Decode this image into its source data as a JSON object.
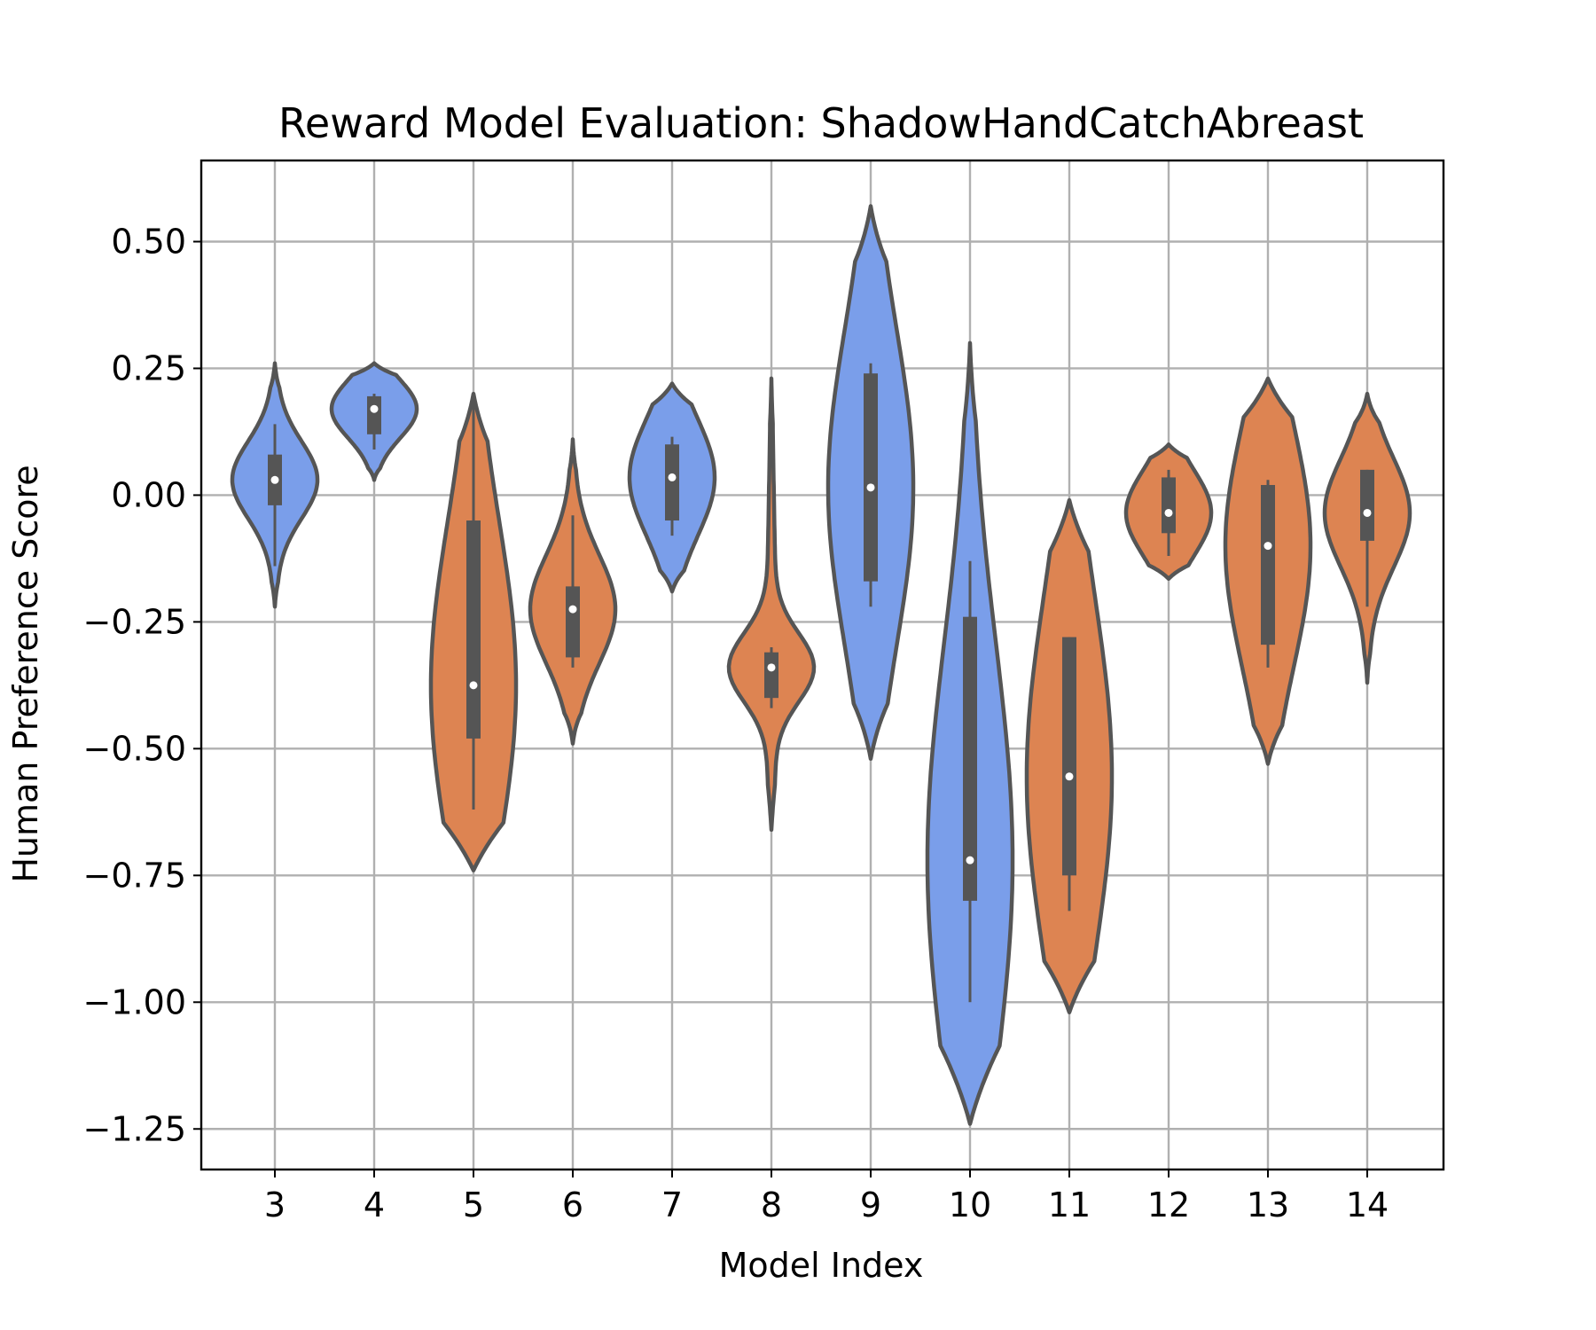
{
  "chart_data": {
    "type": "violin",
    "title": "Reward Model Evaluation: ShadowHandCatchAbreast",
    "xlabel": "Model Index",
    "ylabel": "Human Preference Score",
    "ylim": [
      -1.33,
      0.66
    ],
    "yticks": [
      0.5,
      0.25,
      0.0,
      -0.25,
      -0.5,
      -0.75,
      -1.0,
      -1.25
    ],
    "ytick_labels": [
      "0.50",
      "0.25",
      "0.00",
      "−0.25",
      "−0.50",
      "−0.75",
      "−1.00",
      "−1.25"
    ],
    "categories": [
      "3",
      "4",
      "5",
      "6",
      "7",
      "8",
      "9",
      "10",
      "11",
      "12",
      "13",
      "14"
    ],
    "grid": true,
    "colors": {
      "blue": "#7a9eea",
      "orange": "#dd8452",
      "outline": "#555555",
      "grid": "#b0b0b0"
    },
    "violins": [
      {
        "category": "3",
        "color": "blue",
        "min": -0.22,
        "max": 0.26,
        "q1": -0.02,
        "median": 0.03,
        "q3": 0.08,
        "whisker_low": -0.14,
        "whisker_high": 0.14
      },
      {
        "category": "4",
        "color": "blue",
        "min": 0.03,
        "max": 0.26,
        "q1": 0.12,
        "median": 0.17,
        "q3": 0.195,
        "whisker_low": 0.09,
        "whisker_high": 0.2
      },
      {
        "category": "5",
        "color": "orange",
        "min": -0.74,
        "max": 0.2,
        "q1": -0.48,
        "median": -0.375,
        "q3": -0.05,
        "whisker_low": -0.62,
        "whisker_high": 0.2
      },
      {
        "category": "6",
        "color": "orange",
        "min": -0.49,
        "max": 0.11,
        "q1": -0.32,
        "median": -0.225,
        "q3": -0.18,
        "whisker_low": -0.34,
        "whisker_high": -0.04
      },
      {
        "category": "7",
        "color": "blue",
        "min": -0.19,
        "max": 0.22,
        "q1": -0.05,
        "median": 0.035,
        "q3": 0.1,
        "whisker_low": -0.08,
        "whisker_high": 0.115
      },
      {
        "category": "8",
        "color": "orange",
        "min": -0.66,
        "max": 0.23,
        "q1": -0.4,
        "median": -0.34,
        "q3": -0.31,
        "whisker_low": -0.42,
        "whisker_high": -0.3
      },
      {
        "category": "9",
        "color": "blue",
        "min": -0.52,
        "max": 0.57,
        "q1": -0.17,
        "median": 0.015,
        "q3": 0.24,
        "whisker_low": -0.22,
        "whisker_high": 0.26
      },
      {
        "category": "10",
        "color": "blue",
        "min": -1.24,
        "max": 0.3,
        "q1": -0.8,
        "median": -0.72,
        "q3": -0.24,
        "whisker_low": -1.0,
        "whisker_high": -0.13
      },
      {
        "category": "11",
        "color": "orange",
        "min": -1.02,
        "max": -0.01,
        "q1": -0.75,
        "median": -0.555,
        "q3": -0.28,
        "whisker_low": -0.82,
        "whisker_high": -0.28
      },
      {
        "category": "12",
        "color": "orange",
        "min": -0.165,
        "max": 0.1,
        "q1": -0.075,
        "median": -0.035,
        "q3": 0.035,
        "whisker_low": -0.12,
        "whisker_high": 0.05
      },
      {
        "category": "13",
        "color": "orange",
        "min": -0.53,
        "max": 0.23,
        "q1": -0.295,
        "median": -0.1,
        "q3": 0.02,
        "whisker_low": -0.34,
        "whisker_high": 0.03
      },
      {
        "category": "14",
        "color": "orange",
        "min": -0.37,
        "max": 0.2,
        "q1": -0.09,
        "median": -0.035,
        "q3": 0.05,
        "whisker_low": -0.22,
        "whisker_high": 0.05
      }
    ]
  }
}
